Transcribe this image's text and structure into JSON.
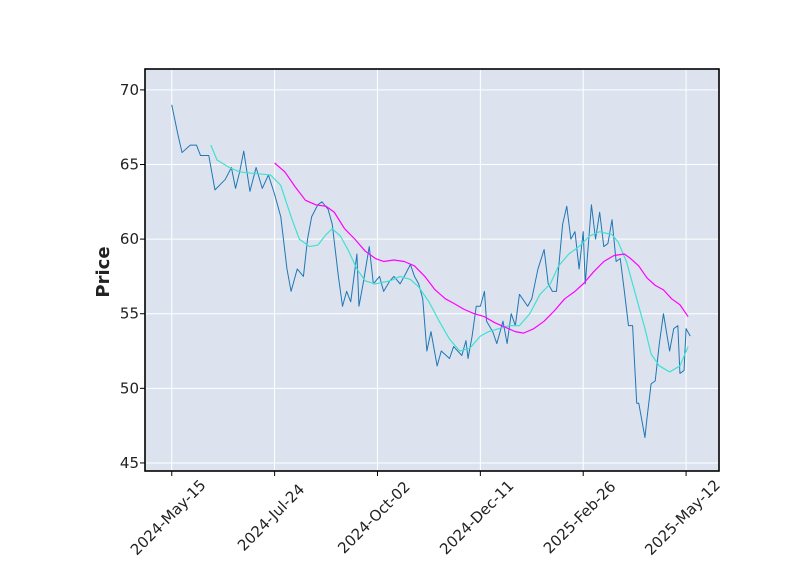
{
  "chart_data": {
    "type": "line",
    "ylabel": "Price",
    "series": [
      {
        "color": "#1f77b4",
        "width": 1,
        "x": [
          0,
          3,
          5,
          9,
          12,
          14,
          18,
          21,
          26,
          29,
          31,
          33,
          35,
          38,
          41,
          44,
          47,
          50,
          53,
          56,
          58,
          61,
          64,
          66,
          68,
          71,
          73,
          76,
          78,
          81,
          83,
          85,
          87,
          90,
          91,
          93,
          96,
          98,
          101,
          103,
          106,
          108,
          111,
          113,
          116,
          118,
          120,
          122,
          124,
          126,
          129,
          131,
          135,
          137,
          141,
          143,
          144,
          146,
          148,
          150,
          152,
          153,
          156,
          158,
          161,
          163,
          165,
          167,
          169,
          173,
          175,
          178,
          181,
          183,
          185,
          187,
          190,
          192,
          194,
          196,
          198,
          200,
          201,
          204,
          206,
          208,
          210,
          212,
          214,
          216,
          218,
          220,
          222,
          224,
          226,
          227,
          230,
          231,
          233,
          235,
          237,
          239,
          242,
          244,
          246,
          247,
          249,
          250,
          252
        ],
        "values": [
          69,
          67,
          65.8,
          66.3,
          66.3,
          65.6,
          65.6,
          63.3,
          64,
          64.8,
          63.4,
          64.5,
          65.9,
          63.2,
          64.8,
          63.4,
          64.3,
          63,
          61.5,
          58,
          56.5,
          58,
          57.5,
          60,
          61.5,
          62.3,
          62.5,
          62,
          61,
          57.5,
          55.5,
          56.5,
          55.8,
          59,
          55.5,
          57,
          59.5,
          57,
          57.5,
          56.5,
          57.2,
          57.5,
          57,
          57.5,
          58.3,
          57.5,
          57,
          56,
          52.5,
          53.8,
          51.5,
          52.5,
          52,
          52.8,
          52.2,
          53.2,
          52,
          53.5,
          55.5,
          55.5,
          56.5,
          54.5,
          53.8,
          53,
          54.5,
          53,
          55,
          54.2,
          56.3,
          55.5,
          56,
          58,
          59.3,
          57,
          56.5,
          56.5,
          61,
          62.2,
          60,
          60.5,
          58,
          60.5,
          57,
          62.3,
          60,
          61.8,
          59.5,
          59.7,
          61.3,
          58.5,
          58.7,
          56.5,
          54.2,
          54.2,
          49,
          49,
          46.7,
          48,
          50.3,
          50.5,
          53,
          55,
          52.5,
          54,
          54.2,
          51,
          51.2,
          54,
          53.5
        ]
      },
      {
        "color": "#40e0d0",
        "width": 1.2,
        "x": [
          19,
          22,
          28,
          33,
          40,
          48,
          53,
          58,
          62,
          67,
          71,
          75,
          78,
          82,
          86,
          90,
          94,
          99,
          106,
          111,
          116,
          120,
          125,
          130,
          135,
          140,
          145,
          150,
          154,
          159,
          164,
          169,
          174,
          179,
          184,
          188,
          193,
          198,
          203,
          208,
          214,
          217,
          221,
          225,
          230,
          233,
          237,
          242,
          247,
          251
        ],
        "values": [
          66.3,
          65.3,
          64.8,
          64.5,
          64.4,
          64.3,
          63.6,
          61.5,
          60,
          59.5,
          59.6,
          60.3,
          60.7,
          60.2,
          59.2,
          58,
          57.2,
          57,
          57.2,
          57.5,
          57.3,
          56.8,
          55.8,
          54.5,
          53.3,
          52.5,
          52.7,
          53.5,
          53.8,
          54,
          54.2,
          54.2,
          55,
          56.3,
          57,
          58.2,
          59,
          59.5,
          60.2,
          60.5,
          60.3,
          59.8,
          58.5,
          56.5,
          54,
          52.3,
          51.5,
          51.1,
          51.5,
          52.8
        ]
      },
      {
        "color": "#ff00ff",
        "width": 1.2,
        "x": [
          50,
          55,
          60,
          65,
          70,
          75,
          79,
          84,
          89,
          94,
          99,
          103,
          108,
          113,
          118,
          123,
          128,
          133,
          137,
          142,
          147,
          152,
          157,
          162,
          167,
          171,
          176,
          181,
          186,
          191,
          196,
          200,
          205,
          210,
          215,
          220,
          223,
          227,
          231,
          235,
          239,
          243,
          247,
          251
        ],
        "values": [
          65.1,
          64.5,
          63.5,
          62.6,
          62.3,
          62.2,
          61.8,
          60.7,
          60,
          59.2,
          58.7,
          58.5,
          58.6,
          58.5,
          58.2,
          57.5,
          56.6,
          56,
          55.7,
          55.3,
          55,
          54.8,
          54.4,
          54.1,
          53.8,
          53.7,
          54,
          54.5,
          55.2,
          56,
          56.5,
          57,
          57.8,
          58.5,
          58.9,
          59,
          58.7,
          58.2,
          57.4,
          56.9,
          56.6,
          56,
          55.6,
          54.8
        ]
      }
    ],
    "xlim": [
      -13,
      266
    ],
    "xticks": [
      {
        "value": 0,
        "label": "2024-May-15"
      },
      {
        "value": 50,
        "label": "2024-Jul-24"
      },
      {
        "value": 100,
        "label": "2024-Oct-02"
      },
      {
        "value": 150,
        "label": "2024-Dec-11"
      },
      {
        "value": 200,
        "label": "2025-Feb-26"
      },
      {
        "value": 250,
        "label": "2025-May-12"
      }
    ],
    "ylim": [
      44.46,
      71.4
    ],
    "yticks": [
      45,
      50,
      55,
      60,
      65,
      70
    ],
    "grid": true,
    "background": "#dce3ef"
  }
}
